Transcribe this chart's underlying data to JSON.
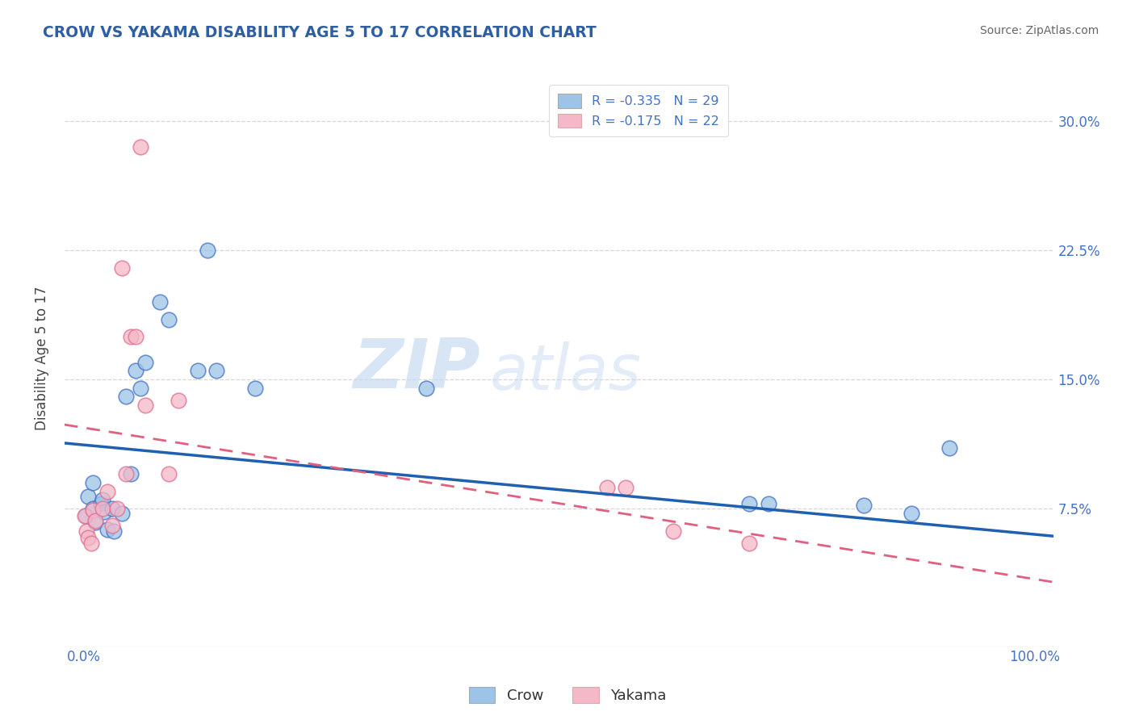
{
  "title": "CROW VS YAKAMA DISABILITY AGE 5 TO 17 CORRELATION CHART",
  "source": "Source: ZipAtlas.com",
  "ylabel": "Disability Age 5 to 17",
  "xlim": [
    -0.02,
    1.02
  ],
  "ylim": [
    -0.005,
    0.33
  ],
  "yticks": [
    0.075,
    0.15,
    0.225,
    0.3
  ],
  "ytick_labels": [
    "7.5%",
    "15.0%",
    "22.5%",
    "30.0%"
  ],
  "xtick_labels": [
    "0.0%",
    "100.0%"
  ],
  "title_color": "#2E5FA3",
  "axis_color": "#4472C4",
  "crow_color": "#9DC3E6",
  "crow_edge_color": "#4472C4",
  "yakama_color": "#F4B8C8",
  "yakama_edge_color": "#E07090",
  "crow_R": -0.335,
  "crow_N": 29,
  "yakama_R": -0.175,
  "yakama_N": 22,
  "crow_line_color": "#2060B0",
  "yakama_line_color": "#E06080",
  "crow_scatter_x": [
    0.002,
    0.005,
    0.01,
    0.01,
    0.012,
    0.018,
    0.02,
    0.022,
    0.025,
    0.03,
    0.032,
    0.04,
    0.045,
    0.05,
    0.055,
    0.06,
    0.065,
    0.08,
    0.09,
    0.12,
    0.13,
    0.14,
    0.18,
    0.36,
    0.7,
    0.72,
    0.82,
    0.87,
    0.91
  ],
  "crow_scatter_y": [
    0.071,
    0.082,
    0.075,
    0.09,
    0.067,
    0.078,
    0.08,
    0.073,
    0.063,
    0.075,
    0.062,
    0.072,
    0.14,
    0.095,
    0.155,
    0.145,
    0.16,
    0.195,
    0.185,
    0.155,
    0.225,
    0.155,
    0.145,
    0.145,
    0.078,
    0.078,
    0.077,
    0.072,
    0.11
  ],
  "yakama_scatter_x": [
    0.001,
    0.003,
    0.005,
    0.008,
    0.01,
    0.012,
    0.02,
    0.025,
    0.03,
    0.035,
    0.04,
    0.045,
    0.05,
    0.055,
    0.06,
    0.065,
    0.09,
    0.1,
    0.55,
    0.57,
    0.62,
    0.7
  ],
  "yakama_scatter_y": [
    0.071,
    0.062,
    0.058,
    0.055,
    0.074,
    0.068,
    0.075,
    0.085,
    0.065,
    0.075,
    0.215,
    0.095,
    0.175,
    0.175,
    0.285,
    0.135,
    0.095,
    0.138,
    0.087,
    0.087,
    0.062,
    0.055
  ],
  "watermark_zip": "ZIP",
  "watermark_atlas": "atlas",
  "background_color": "#ffffff",
  "grid_color": "#cccccc",
  "crow_line_intercept": 0.112,
  "crow_line_slope": -0.052,
  "yakama_line_intercept": 0.122,
  "yakama_line_slope": -0.088
}
